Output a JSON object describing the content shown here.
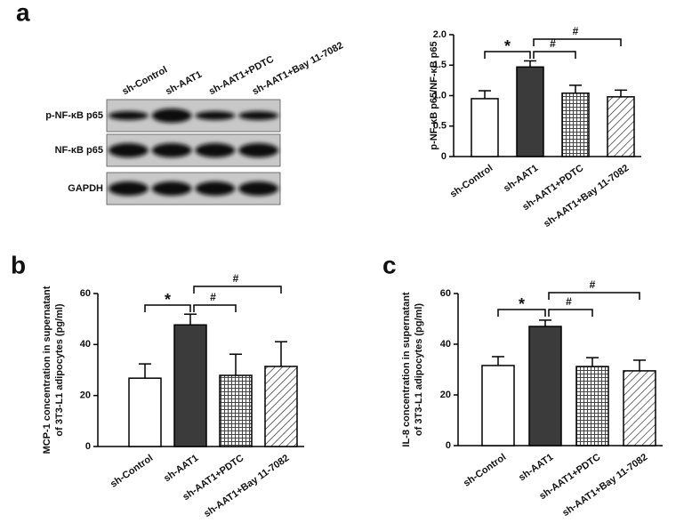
{
  "chart_data": [
    {
      "type": "bar",
      "panel_label": "a",
      "ylabel": [
        "p-NF-κB p65/NF-κB p65"
      ],
      "categories": [
        "sh-Control",
        "sh-AAT1",
        "sh-AAT1+PDTC",
        "sh-AAT1+Bay 11-7082"
      ],
      "values": [
        0.95,
        1.47,
        1.04,
        0.98
      ],
      "errors": [
        0.13,
        0.1,
        0.13,
        0.11
      ],
      "patterns": [
        "white",
        "solid",
        "grid",
        "hatch"
      ],
      "ylim": [
        0,
        2
      ],
      "yticks": [
        0,
        0.5,
        {
          "value": 1,
          "label": "1.0"
        },
        1.5,
        {
          "value": 2,
          "label": "2.0"
        }
      ],
      "annotations": [
        {
          "text": "*",
          "from": 0,
          "to": 1
        },
        {
          "text": "#",
          "from": 1,
          "to": 2
        },
        {
          "text": "#",
          "from": 1,
          "to": 3
        }
      ]
    },
    {
      "type": "bar",
      "panel_label": "b",
      "ylabel": [
        "MCP-1 concentration in supernatant",
        "of 3T3-L1 adipocytes (pg/ml)"
      ],
      "categories": [
        "sh-Control",
        "sh-AAT1",
        "sh-AAT1+PDTC",
        "sh-AAT1+Bay 11-7082"
      ],
      "values": [
        26.8,
        47.7,
        27.9,
        31.4
      ],
      "errors": [
        5.6,
        4.2,
        8.3,
        9.7
      ],
      "patterns": [
        "white",
        "solid",
        "grid",
        "hatch"
      ],
      "ylim": [
        0,
        60
      ],
      "yticks": [
        0,
        20,
        40,
        60
      ],
      "annotations": [
        {
          "text": "*",
          "from": 0,
          "to": 1
        },
        {
          "text": "#",
          "from": 1,
          "to": 2
        },
        {
          "text": "#",
          "from": 1,
          "to": 3
        }
      ]
    },
    {
      "type": "bar",
      "panel_label": "c",
      "ylabel": [
        "IL-8 concentration in supernatant",
        "of 3T3-L1 adipocytes (pg/ml)"
      ],
      "categories": [
        "sh-Control",
        "sh-AAT1",
        "sh-AAT1+PDTC",
        "sh-AAT1+Bay 11-7082"
      ],
      "values": [
        31.6,
        47.0,
        31.2,
        29.5
      ],
      "errors": [
        3.5,
        2.5,
        3.5,
        4.2
      ],
      "patterns": [
        "white",
        "solid",
        "grid",
        "hatch"
      ],
      "ylim": [
        0,
        60
      ],
      "yticks": [
        0,
        20,
        40,
        60
      ],
      "annotations": [
        {
          "text": "*",
          "from": 0,
          "to": 1
        },
        {
          "text": "#",
          "from": 1,
          "to": 2
        },
        {
          "text": "#",
          "from": 1,
          "to": 3
        }
      ]
    }
  ],
  "blot": {
    "lanes": [
      "sh-Control",
      "sh-AAT1",
      "sh-AAT1+PDTC",
      "sh-AAT1+Bay 11-7082"
    ],
    "rows": [
      "p-NF-κB p65",
      "NF-κB p65",
      "GAPDH"
    ]
  }
}
